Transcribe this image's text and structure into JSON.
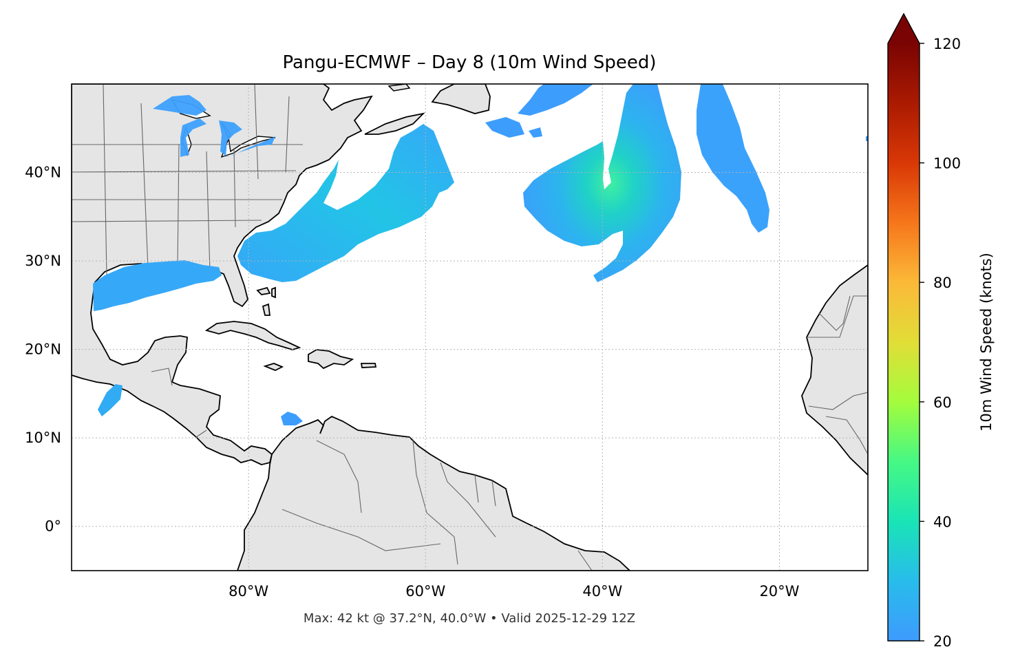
{
  "title": "Pangu-ECMWF – Day 8 (10m Wind Speed)",
  "footer": "Max: 42 kt @ 37.2°N, 40.0°W • Valid 2025-12-29 12Z",
  "map": {
    "projection": "PlateCarree",
    "lon_range": [
      -100,
      -10
    ],
    "lat_range": [
      -5,
      50
    ],
    "gridlines": "dotted",
    "land_color": "#e5e5e5",
    "coastline_color": "#000000",
    "border_color": "#666666"
  },
  "axes": {
    "x_ticks": [
      {
        "lon": -80,
        "label": "80°W"
      },
      {
        "lon": -60,
        "label": "60°W"
      },
      {
        "lon": -40,
        "label": "40°W"
      },
      {
        "lon": -20,
        "label": "20°W"
      }
    ],
    "y_ticks": [
      {
        "lat": 40,
        "label": "40°N"
      },
      {
        "lat": 30,
        "label": "30°N"
      },
      {
        "lat": 20,
        "label": "20°N"
      },
      {
        "lat": 10,
        "label": "10°N"
      },
      {
        "lat": 0,
        "label": "0°"
      }
    ]
  },
  "colorbar": {
    "label": "10m Wind Speed (knots)",
    "min": 20,
    "max": 120,
    "extend": "max",
    "ticks": [
      {
        "value": 20,
        "label": "20"
      },
      {
        "value": 40,
        "label": "40"
      },
      {
        "value": 60,
        "label": "60"
      },
      {
        "value": 80,
        "label": "80"
      },
      {
        "value": 100,
        "label": "100"
      },
      {
        "value": 120,
        "label": "120"
      }
    ],
    "colormap": "turbo",
    "extend_color": "#7a0403"
  },
  "max_wind": {
    "speed_kt": 42,
    "lat": 37.2,
    "lon": -40.0
  },
  "wind_areas": [
    {
      "name": "western-atlantic-band",
      "peak_kt": 30
    },
    {
      "name": "central-atlantic-swirl",
      "peak_kt": 42
    },
    {
      "name": "eastern-atlantic-band",
      "peak_kt": 25
    },
    {
      "name": "gulf-of-mexico",
      "peak_kt": 24
    },
    {
      "name": "great-lakes",
      "peak_kt": 22
    }
  ]
}
